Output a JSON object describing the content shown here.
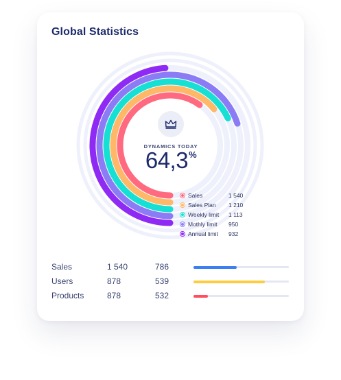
{
  "card": {
    "title": "Global Statistics"
  },
  "kpi": {
    "label": "DYNAMICS TODAY",
    "value": "64,3",
    "unit": "%",
    "icon": "crown-icon"
  },
  "colors": {
    "sales": "#ff6a80",
    "sales_plan": "#ffb768",
    "weekly_limit": "#15e0d3",
    "monthly_limit": "#8b7cf6",
    "annual_limit": "#8f2af5",
    "track": "#eef0fb",
    "bar_blue": "#3b7ff0",
    "bar_yellow": "#ffcc3d",
    "bar_red": "#ff4f5e"
  },
  "legend": [
    {
      "name": "Sales",
      "value": "1 540",
      "color": "#ff6a80"
    },
    {
      "name": "Sales Plan",
      "value": "1 210",
      "color": "#ffb768"
    },
    {
      "name": "Weekly limit",
      "value": "1 113",
      "color": "#15e0d3"
    },
    {
      "name": "Mothly limit",
      "value": "950",
      "color": "#8b7cf6"
    },
    {
      "name": "Annual limit",
      "value": "932",
      "color": "#8f2af5"
    }
  ],
  "rings": [
    {
      "name": "Sales",
      "progress": 0.6,
      "color": "#ff6a80"
    },
    {
      "name": "Sales Plan",
      "progress": 0.64,
      "color": "#ffb768"
    },
    {
      "name": "Weekly limit",
      "progress": 0.68,
      "color": "#15e0d3"
    },
    {
      "name": "Mothly limit",
      "progress": 0.7,
      "color": "#8b7cf6"
    },
    {
      "name": "Annual limit",
      "progress": 0.49,
      "color": "#8f2af5"
    }
  ],
  "table": {
    "rows": [
      {
        "name": "Sales",
        "v1": "1 540",
        "v2": "786",
        "progress": 0.45,
        "color": "#3b7ff0"
      },
      {
        "name": "Users",
        "v1": "878",
        "v2": "539",
        "progress": 0.75,
        "color": "#ffcc3d"
      },
      {
        "name": "Products",
        "v1": "878",
        "v2": "532",
        "progress": 0.15,
        "color": "#ff4f5e"
      }
    ]
  }
}
